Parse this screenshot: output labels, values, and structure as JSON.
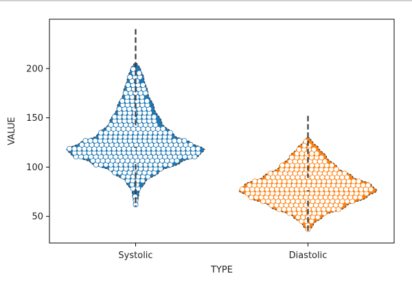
{
  "chart_data": {
    "type": "violin-swarm",
    "title": "",
    "xlabel": "TYPE",
    "ylabel": "VALUE",
    "categories": [
      "Systolic",
      "Diastolic"
    ],
    "ylim": [
      23,
      250
    ],
    "yticks": [
      50,
      100,
      150,
      200
    ],
    "grid": false,
    "series": [
      {
        "category": "Systolic",
        "color": "#1f77b4",
        "min": 60,
        "q1": 103,
        "median": 120,
        "q3": 140,
        "max": 240,
        "density": [
          [
            60,
            0.02
          ],
          [
            75,
            0.05
          ],
          [
            85,
            0.14
          ],
          [
            95,
            0.34
          ],
          [
            105,
            0.66
          ],
          [
            112,
            0.93
          ],
          [
            118,
            1.0
          ],
          [
            125,
            0.8
          ],
          [
            132,
            0.56
          ],
          [
            145,
            0.38
          ],
          [
            160,
            0.27
          ],
          [
            175,
            0.18
          ],
          [
            190,
            0.12
          ],
          [
            200,
            0.07
          ],
          [
            205,
            0.02
          ]
        ]
      },
      {
        "category": "Diastolic",
        "color": "#ff7f0e",
        "min": 35,
        "q1": 66,
        "median": 76,
        "q3": 89,
        "max": 152,
        "density": [
          [
            35,
            0.02
          ],
          [
            42,
            0.08
          ],
          [
            50,
            0.22
          ],
          [
            60,
            0.55
          ],
          [
            70,
            0.86
          ],
          [
            76,
            1.0
          ],
          [
            82,
            0.92
          ],
          [
            90,
            0.65
          ],
          [
            100,
            0.42
          ],
          [
            110,
            0.27
          ],
          [
            120,
            0.15
          ],
          [
            125,
            0.07
          ],
          [
            130,
            0.02
          ]
        ]
      }
    ]
  }
}
